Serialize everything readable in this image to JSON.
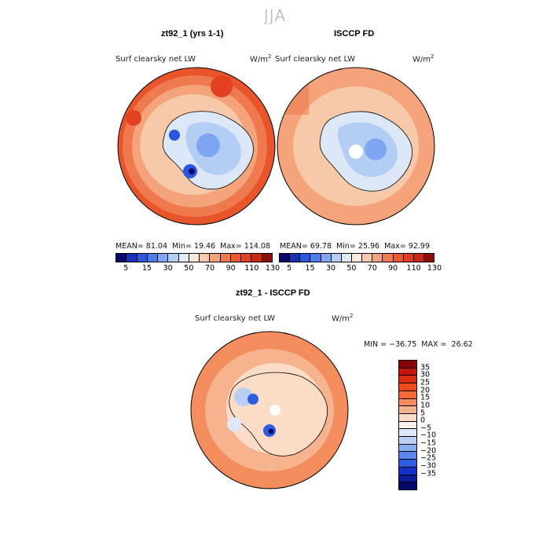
{
  "figure": {
    "season": "JJA"
  },
  "panels": [
    {
      "title": "zt92_1 (yrs 1-1)",
      "variable": "Surf clearsky net LW",
      "units_base": "W/m",
      "units_exp": "2",
      "mean": "81.04",
      "min": "19.46",
      "max": "114.08",
      "mean_label": "MEAN=",
      "min_label": "Min=",
      "max_label": "Max="
    },
    {
      "title": "ISCCP FD",
      "variable": "Surf clearsky net LW",
      "units_base": "W/m",
      "units_exp": "2",
      "mean": "69.78",
      "min": "25.96",
      "max": "92.99",
      "mean_label": "MEAN=",
      "min_label": "Min=",
      "max_label": "Max="
    },
    {
      "title": "zt92_1 - ISCCP FD",
      "variable": "Surf clearsky net LW",
      "units_base": "W/m",
      "units_exp": "2",
      "minmax_text": "MIN = −36.75  MAX =  26.62"
    }
  ],
  "colorbar_abs": {
    "labels": [
      "5",
      "15",
      "30",
      "50",
      "70",
      "90",
      "110",
      "130"
    ],
    "colors": [
      "#0a0a6e",
      "#1a2fb5",
      "#2c55e0",
      "#4a7ef0",
      "#7ea6f2",
      "#b3cdf5",
      "#e0ebf8",
      "#fbe9dc",
      "#f8c9a8",
      "#f4a37a",
      "#f07a50",
      "#ea5a2d",
      "#e24020",
      "#c92a16",
      "#8e0e0a"
    ]
  },
  "colorbar_diff": {
    "labels": [
      "35",
      "30",
      "25",
      "20",
      "15",
      "10",
      "5",
      "0",
      "−5",
      "−10",
      "−15",
      "−20",
      "−25",
      "−30",
      "−35"
    ],
    "colors": [
      "#8b0000",
      "#c4150c",
      "#dd2b12",
      "#ee4a1c",
      "#f36a36",
      "#f48d5d",
      "#f7b28e",
      "#fbdcc6",
      "#fdf2ea",
      "#dde9f9",
      "#b9d0f6",
      "#8aaef2",
      "#5b86ec",
      "#2f5de2",
      "#1232c8",
      "#0b1d9a",
      "#050a6a"
    ]
  }
}
